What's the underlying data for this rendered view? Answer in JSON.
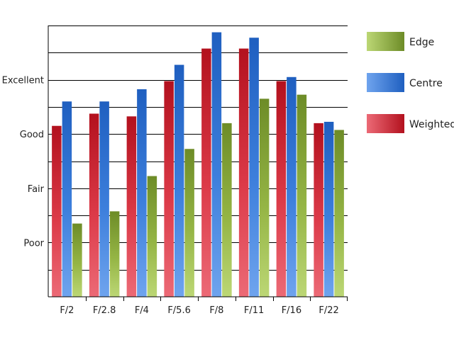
{
  "chart_data": {
    "type": "bar",
    "categories": [
      "F/2",
      "F/2.8",
      "F/4",
      "F/5.6",
      "F/8",
      "F/11",
      "F/16",
      "F/22"
    ],
    "y_tick_labels": [
      {
        "value": 2,
        "label": "Poor"
      },
      {
        "value": 4,
        "label": "Fair"
      },
      {
        "value": 6,
        "label": "Good"
      },
      {
        "value": 8,
        "label": "Excellent"
      }
    ],
    "ylim": [
      0,
      10
    ],
    "grid": true,
    "legend": "right",
    "series": [
      {
        "name": "Weighted",
        "values": [
          6.3,
          6.75,
          6.65,
          7.95,
          9.15,
          9.15,
          7.95,
          6.4
        ],
        "colors": {
          "dark": "#b3111e",
          "mid": "#dc3a48",
          "light": "#ec6a76"
        }
      },
      {
        "name": "Centre",
        "values": [
          7.2,
          7.2,
          7.65,
          8.55,
          9.75,
          9.55,
          8.1,
          6.45
        ],
        "colors": {
          "dark": "#1f5fc0",
          "mid": "#3d7fdc",
          "light": "#6fa4ee"
        }
      },
      {
        "name": "Edge",
        "values": [
          2.7,
          3.15,
          4.45,
          5.45,
          6.4,
          7.3,
          7.45,
          6.15
        ],
        "colors": {
          "dark": "#6d8c27",
          "mid": "#95b545",
          "light": "#bcd775"
        }
      }
    ],
    "legend_order": [
      "Edge",
      "Centre",
      "Weighted"
    ]
  }
}
